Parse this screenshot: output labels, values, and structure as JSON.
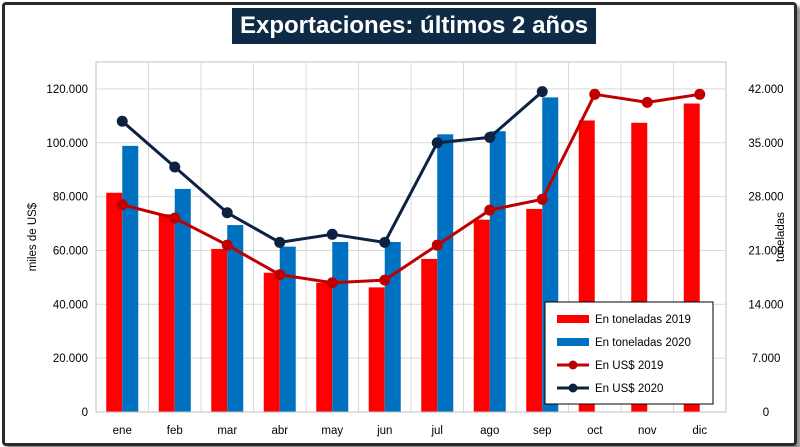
{
  "chart_data": {
    "type": "bar",
    "title": "Exportaciones: últimos 2 años",
    "categories": [
      "ene",
      "feb",
      "mar",
      "abr",
      "may",
      "jun",
      "jul",
      "ago",
      "sep",
      "oct",
      "nov",
      "dic"
    ],
    "ylabel_left": "miles de US$",
    "ylabel_right": "toneladas",
    "ylim_left": [
      0,
      130000
    ],
    "ylim_right": [
      0,
      45500
    ],
    "yticks_left": [
      "0",
      "20.000",
      "40.000",
      "60.000",
      "80.000",
      "100.000",
      "120.000"
    ],
    "yticks_right": [
      "0",
      "7.000",
      "14.000",
      "21.000",
      "28.000",
      "35.000",
      "42.000"
    ],
    "grid": true,
    "legend_position": "bottom-right",
    "series": [
      {
        "name": "En toneladas 2019",
        "kind": "bar",
        "axis": "right",
        "color": "#ff0000",
        "values": [
          28500,
          25700,
          21200,
          18100,
          16800,
          16200,
          19900,
          25000,
          26400,
          37900,
          37600,
          40100
        ]
      },
      {
        "name": "En toneladas 2020",
        "kind": "bar",
        "axis": "right",
        "color": "#0070c0",
        "values": [
          34600,
          29000,
          24300,
          21500,
          22100,
          22100,
          36100,
          36500,
          40900,
          null,
          null,
          null
        ]
      },
      {
        "name": "En US$ 2019",
        "kind": "line",
        "axis": "left",
        "color": "#c00000",
        "values": [
          77000,
          72000,
          62000,
          51000,
          48000,
          49000,
          62000,
          75000,
          79000,
          118000,
          115000,
          118000
        ]
      },
      {
        "name": "En US$ 2020",
        "kind": "line",
        "axis": "left",
        "color": "#0d2240",
        "values": [
          108000,
          91000,
          74000,
          63000,
          66000,
          63000,
          100000,
          102000,
          119000,
          null,
          null,
          null
        ]
      }
    ]
  }
}
